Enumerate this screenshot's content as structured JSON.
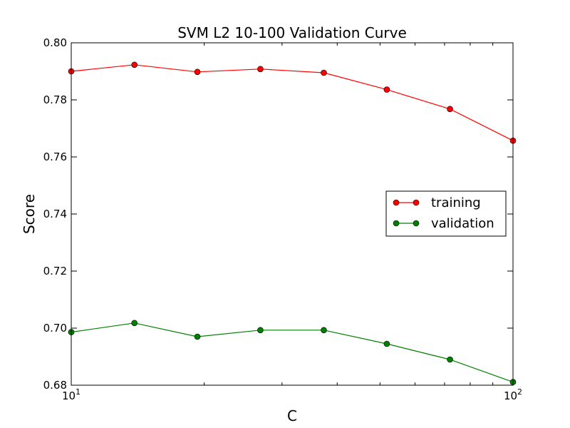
{
  "chart_data": {
    "type": "line",
    "title": "SVM L2 10-100 Validation Curve",
    "xlabel": "C",
    "ylabel": "Score",
    "x_scale": "log",
    "xlim": [
      10,
      100
    ],
    "ylim": [
      0.68,
      0.8
    ],
    "x_ticks": [
      {
        "value": 10,
        "base": "10",
        "exp": "1"
      },
      {
        "value": 100,
        "base": "10",
        "exp": "2"
      }
    ],
    "y_ticks": [
      0.68,
      0.7,
      0.72,
      0.74,
      0.76,
      0.78,
      0.8
    ],
    "y_tick_labels": [
      "0.68",
      "0.70",
      "0.72",
      "0.74",
      "0.76",
      "0.78",
      "0.80"
    ],
    "x": [
      10,
      13.9,
      19.3,
      26.8,
      37.3,
      51.8,
      72.0,
      100
    ],
    "series": [
      {
        "name": "training",
        "color": "#ff0000",
        "values": [
          0.79,
          0.7923,
          0.7898,
          0.7908,
          0.7895,
          0.7836,
          0.7768,
          0.7657
        ]
      },
      {
        "name": "validation",
        "color": "#008000",
        "values": [
          0.6986,
          0.7018,
          0.697,
          0.6993,
          0.6993,
          0.6945,
          0.689,
          0.6811
        ]
      }
    ],
    "grid": false,
    "legend_position": "center-right"
  }
}
